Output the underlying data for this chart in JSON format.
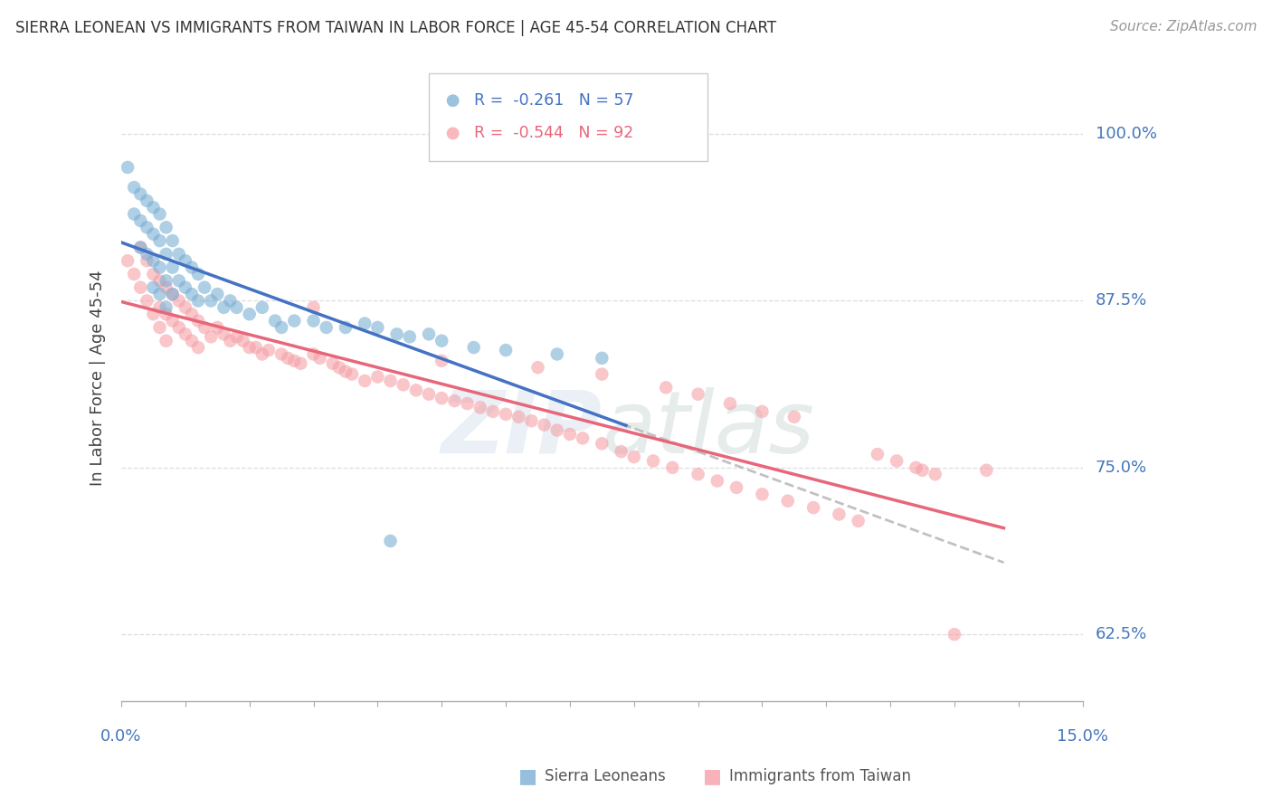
{
  "title": "SIERRA LEONEAN VS IMMIGRANTS FROM TAIWAN IN LABOR FORCE | AGE 45-54 CORRELATION CHART",
  "source": "Source: ZipAtlas.com",
  "ylabel": "In Labor Force | Age 45-54",
  "ytick_labels": [
    "62.5%",
    "75.0%",
    "87.5%",
    "100.0%"
  ],
  "ytick_values": [
    0.625,
    0.75,
    0.875,
    1.0
  ],
  "xlim": [
    0.0,
    0.15
  ],
  "ylim": [
    0.575,
    1.06
  ],
  "blue_color": "#7BAFD4",
  "pink_color": "#F5A0A8",
  "blue_line_color": "#4472C4",
  "pink_line_color": "#E8667A",
  "dash_line_color": "#BBBBBB",
  "legend_text_blue": "R =  -0.261   N = 57",
  "legend_text_pink": "R =  -0.544   N = 92",
  "watermark": "ZIPatlas",
  "title_color": "#333333",
  "source_color": "#999999",
  "axis_label_color": "#4477BB",
  "grid_color": "#DDDDDD",
  "blue_x": [
    0.001,
    0.002,
    0.002,
    0.003,
    0.003,
    0.003,
    0.004,
    0.004,
    0.004,
    0.005,
    0.005,
    0.005,
    0.005,
    0.006,
    0.006,
    0.006,
    0.006,
    0.007,
    0.007,
    0.007,
    0.007,
    0.008,
    0.008,
    0.008,
    0.009,
    0.009,
    0.01,
    0.01,
    0.011,
    0.011,
    0.012,
    0.012,
    0.013,
    0.014,
    0.015,
    0.016,
    0.017,
    0.018,
    0.02,
    0.022,
    0.024,
    0.025,
    0.027,
    0.03,
    0.032,
    0.035,
    0.038,
    0.04,
    0.043,
    0.045,
    0.042,
    0.048,
    0.05,
    0.055,
    0.06,
    0.068,
    0.075
  ],
  "blue_y": [
    0.975,
    0.96,
    0.94,
    0.955,
    0.935,
    0.915,
    0.95,
    0.93,
    0.91,
    0.945,
    0.925,
    0.905,
    0.885,
    0.94,
    0.92,
    0.9,
    0.88,
    0.93,
    0.91,
    0.89,
    0.87,
    0.92,
    0.9,
    0.88,
    0.91,
    0.89,
    0.905,
    0.885,
    0.9,
    0.88,
    0.895,
    0.875,
    0.885,
    0.875,
    0.88,
    0.87,
    0.875,
    0.87,
    0.865,
    0.87,
    0.86,
    0.855,
    0.86,
    0.86,
    0.855,
    0.855,
    0.858,
    0.855,
    0.85,
    0.848,
    0.695,
    0.85,
    0.845,
    0.84,
    0.838,
    0.835,
    0.832
  ],
  "pink_x": [
    0.001,
    0.002,
    0.003,
    0.003,
    0.004,
    0.004,
    0.005,
    0.005,
    0.006,
    0.006,
    0.006,
    0.007,
    0.007,
    0.007,
    0.008,
    0.008,
    0.009,
    0.009,
    0.01,
    0.01,
    0.011,
    0.011,
    0.012,
    0.012,
    0.013,
    0.014,
    0.015,
    0.016,
    0.017,
    0.018,
    0.019,
    0.02,
    0.021,
    0.022,
    0.023,
    0.025,
    0.026,
    0.027,
    0.028,
    0.03,
    0.031,
    0.033,
    0.034,
    0.035,
    0.036,
    0.038,
    0.04,
    0.042,
    0.044,
    0.046,
    0.048,
    0.05,
    0.052,
    0.054,
    0.056,
    0.058,
    0.06,
    0.062,
    0.064,
    0.066,
    0.068,
    0.07,
    0.072,
    0.075,
    0.078,
    0.08,
    0.083,
    0.086,
    0.09,
    0.093,
    0.096,
    0.1,
    0.104,
    0.108,
    0.112,
    0.115,
    0.118,
    0.121,
    0.124,
    0.127,
    0.03,
    0.05,
    0.065,
    0.075,
    0.085,
    0.09,
    0.095,
    0.1,
    0.105,
    0.125,
    0.13,
    0.135
  ],
  "pink_y": [
    0.905,
    0.895,
    0.915,
    0.885,
    0.905,
    0.875,
    0.895,
    0.865,
    0.89,
    0.87,
    0.855,
    0.885,
    0.865,
    0.845,
    0.88,
    0.86,
    0.875,
    0.855,
    0.87,
    0.85,
    0.865,
    0.845,
    0.86,
    0.84,
    0.855,
    0.848,
    0.855,
    0.85,
    0.845,
    0.848,
    0.845,
    0.84,
    0.84,
    0.835,
    0.838,
    0.835,
    0.832,
    0.83,
    0.828,
    0.835,
    0.832,
    0.828,
    0.825,
    0.822,
    0.82,
    0.815,
    0.818,
    0.815,
    0.812,
    0.808,
    0.805,
    0.802,
    0.8,
    0.798,
    0.795,
    0.792,
    0.79,
    0.788,
    0.785,
    0.782,
    0.778,
    0.775,
    0.772,
    0.768,
    0.762,
    0.758,
    0.755,
    0.75,
    0.745,
    0.74,
    0.735,
    0.73,
    0.725,
    0.72,
    0.715,
    0.71,
    0.76,
    0.755,
    0.75,
    0.745,
    0.87,
    0.83,
    0.825,
    0.82,
    0.81,
    0.805,
    0.798,
    0.792,
    0.788,
    0.748,
    0.625,
    0.748
  ]
}
